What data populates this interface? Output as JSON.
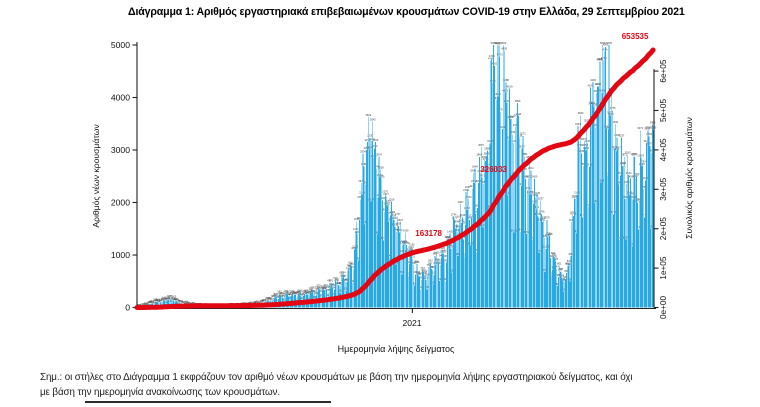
{
  "title": "Διάγραμμα 1: Αριθμός εργαστηριακά επιβεβαιωμένων κρουσμάτων COVID-19 στην Ελλάδα, 29 Σεπτεμβρίου 2021",
  "footnote": {
    "line1": "Σημ.: οι στήλες στο Διάγραμμα 1 εκφράζουν τον αριθμό νέων κρουσμάτων με βάση την ημερομηνία λήψης εργαστηριακού δείγματος, και όχι",
    "line2": "με βάση την ημερομηνία ανακοίνωσης των κρουσμάτων."
  },
  "chart_data": {
    "type": "bar",
    "title": "Διάγραμμα 1: Αριθμός εργαστηριακά επιβεβαιωμένων κρουσμάτων COVID-19 στην Ελλάδα, 29 Σεπτεμβρίου 2021",
    "x_axis": {
      "label": "Ημερομηνία λήψης δείγματος",
      "tick_labels": [
        "2021"
      ],
      "range": [
        "2020-02-26",
        "2021-09-29"
      ],
      "tick_day_index": 310
    },
    "y_left": {
      "label": "Αριθμός νέων κρουσμάτων",
      "ticks": [
        0,
        1000,
        2000,
        3000,
        4000,
        5000
      ],
      "range": [
        0,
        5000
      ]
    },
    "y_right": {
      "label": "Συνολικός αριθμός κρουσμάτων",
      "ticks": [
        "0e+00",
        "1e+05",
        "2e+05",
        "3e+05",
        "4e+05",
        "5e+05",
        "6e+05"
      ],
      "tick_values": [
        0,
        100000,
        200000,
        300000,
        400000,
        500000,
        600000
      ]
    },
    "bars": {
      "name": "Αριθμός νέων κρουσμάτων (ημερήσια)",
      "color": "#29A9E1",
      "days": 582,
      "envelope": [
        [
          0,
          2
        ],
        [
          6,
          15
        ],
        [
          12,
          45
        ],
        [
          20,
          90
        ],
        [
          26,
          110
        ],
        [
          33,
          130
        ],
        [
          38,
          150
        ],
        [
          44,
          110
        ],
        [
          50,
          75
        ],
        [
          58,
          45
        ],
        [
          68,
          25
        ],
        [
          80,
          16
        ],
        [
          95,
          14
        ],
        [
          108,
          22
        ],
        [
          120,
          32
        ],
        [
          130,
          48
        ],
        [
          140,
          75
        ],
        [
          150,
          130
        ],
        [
          160,
          210
        ],
        [
          170,
          235
        ],
        [
          180,
          230
        ],
        [
          188,
          245
        ],
        [
          196,
          280
        ],
        [
          204,
          310
        ],
        [
          212,
          340
        ],
        [
          218,
          390
        ],
        [
          226,
          460
        ],
        [
          234,
          560
        ],
        [
          240,
          740
        ],
        [
          245,
          1100
        ],
        [
          250,
          1800
        ],
        [
          255,
          2600
        ],
        [
          259,
          3100
        ],
        [
          262,
          3450
        ],
        [
          265,
          3200
        ],
        [
          269,
          2800
        ],
        [
          274,
          2400
        ],
        [
          280,
          2050
        ],
        [
          286,
          1800
        ],
        [
          292,
          1500
        ],
        [
          298,
          1280
        ],
        [
          304,
          1120
        ],
        [
          310,
          900
        ],
        [
          315,
          680
        ],
        [
          320,
          560
        ],
        [
          326,
          620
        ],
        [
          332,
          740
        ],
        [
          338,
          820
        ],
        [
          344,
          950
        ],
        [
          350,
          1150
        ],
        [
          356,
          1400
        ],
        [
          362,
          1750
        ],
        [
          367,
          1600
        ],
        [
          372,
          1850
        ],
        [
          378,
          2150
        ],
        [
          384,
          2400
        ],
        [
          389,
          2650
        ],
        [
          393,
          2900
        ],
        [
          397,
          3600
        ],
        [
          400,
          4400
        ],
        [
          402,
          4950
        ],
        [
          405,
          4500
        ],
        [
          408,
          4100
        ],
        [
          411,
          4350
        ],
        [
          414,
          4000
        ],
        [
          418,
          3700
        ],
        [
          422,
          3300
        ],
        [
          426,
          3000
        ],
        [
          430,
          3250
        ],
        [
          434,
          2850
        ],
        [
          438,
          2500
        ],
        [
          443,
          2250
        ],
        [
          448,
          2000
        ],
        [
          453,
          1800
        ],
        [
          458,
          1500
        ],
        [
          464,
          1150
        ],
        [
          470,
          800
        ],
        [
          476,
          620
        ],
        [
          481,
          520
        ],
        [
          485,
          700
        ],
        [
          489,
          1300
        ],
        [
          493,
          2200
        ],
        [
          497,
          2900
        ],
        [
          501,
          3200
        ],
        [
          505,
          3000
        ],
        [
          509,
          3250
        ],
        [
          513,
          3650
        ],
        [
          517,
          4150
        ],
        [
          521,
          4650
        ],
        [
          524,
          4800
        ],
        [
          528,
          4350
        ],
        [
          532,
          3950
        ],
        [
          536,
          3500
        ],
        [
          540,
          3100
        ],
        [
          544,
          2800
        ],
        [
          548,
          2500
        ],
        [
          552,
          2350
        ],
        [
          556,
          2250
        ],
        [
          560,
          2350
        ],
        [
          564,
          2550
        ],
        [
          568,
          2750
        ],
        [
          572,
          2950
        ],
        [
          576,
          3150
        ],
        [
          581,
          3300
        ]
      ],
      "weekday_factors": [
        1.06,
        1.08,
        1.04,
        0.9,
        0.52,
        0.85,
        1.1
      ]
    },
    "cumulative_line": {
      "name": "Συνολικός αριθμός κρουσμάτων",
      "color": "#E30613",
      "total": 653535,
      "annotations": [
        {
          "value": 163178,
          "label": "163178"
        },
        {
          "value": 326033,
          "label": "326033"
        },
        {
          "value": 653535,
          "label": "653535"
        }
      ]
    },
    "style": {
      "bar_color": "#29A9E1",
      "line_color": "#E30613",
      "axis_color": "#222222",
      "bar_label_color": "#3a3a3a",
      "grid": false,
      "legend": false
    }
  }
}
